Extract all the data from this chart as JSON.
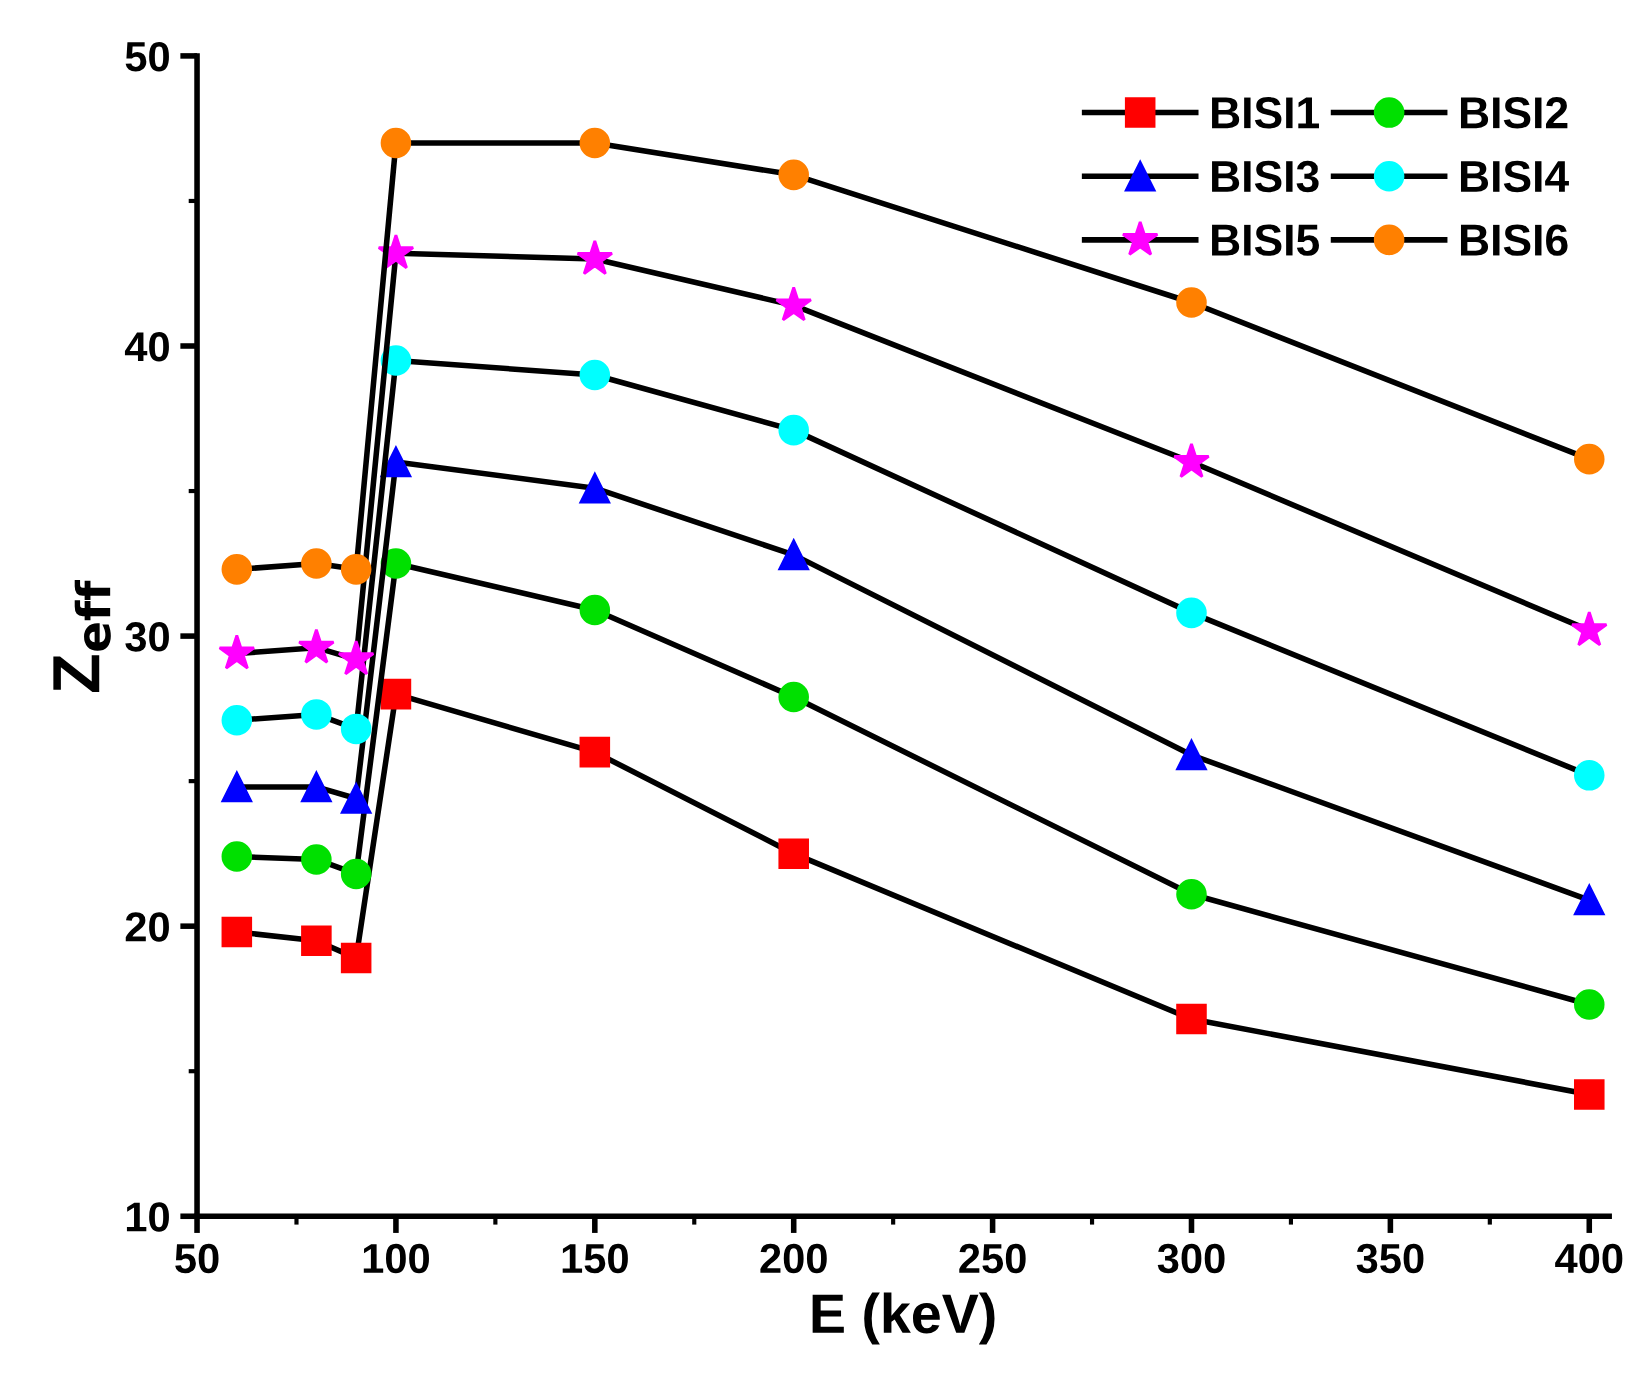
{
  "chart_data": {
    "type": "line",
    "xlabel": "E (keV)",
    "ylabel": "Z$_{eff}$",
    "x": [
      60,
      80,
      90,
      100,
      150,
      200,
      300,
      400
    ],
    "series": [
      {
        "name": "BISI1",
        "color": "#ff0000",
        "marker": "square",
        "values": [
          19.8,
          19.5,
          18.9,
          28.0,
          26.0,
          22.5,
          16.8,
          14.2
        ]
      },
      {
        "name": "BISI2",
        "color": "#00e000",
        "marker": "circle",
        "values": [
          22.4,
          22.3,
          21.8,
          32.5,
          30.9,
          27.9,
          21.1,
          17.3
        ]
      },
      {
        "name": "BISI3",
        "color": "#0000ff",
        "marker": "triangle",
        "values": [
          24.8,
          24.8,
          24.4,
          36.0,
          35.1,
          32.8,
          25.9,
          20.9
        ]
      },
      {
        "name": "BISI4",
        "color": "#00ffff",
        "marker": "circle",
        "values": [
          27.1,
          27.3,
          26.8,
          39.5,
          39.0,
          37.1,
          30.8,
          25.2
        ]
      },
      {
        "name": "BISI5",
        "color": "#ff00ff",
        "marker": "star",
        "values": [
          29.4,
          29.6,
          29.2,
          43.2,
          43.0,
          41.4,
          36.0,
          30.2
        ]
      },
      {
        "name": "BISI6",
        "color": "#ff8000",
        "marker": "circle",
        "values": [
          32.3,
          32.5,
          32.3,
          47.0,
          47.0,
          45.9,
          41.5,
          36.1
        ]
      }
    ],
    "xlim": [
      50,
      405
    ],
    "xticks": [
      50,
      {
        "value": 75,
        "label": null
      },
      100,
      {
        "value": 125,
        "label": null
      },
      150,
      {
        "value": 175,
        "label": null
      },
      200,
      {
        "value": 225,
        "label": null
      },
      250,
      {
        "value": 275,
        "label": null
      },
      300,
      {
        "value": 325,
        "label": null
      },
      350,
      {
        "value": 375,
        "label": null
      },
      400
    ],
    "ylim": [
      10,
      50
    ],
    "yticks": [
      10,
      {
        "value": 15,
        "label": null
      },
      20,
      {
        "value": 25,
        "label": null
      },
      30,
      {
        "value": 35,
        "label": null
      },
      40,
      {
        "value": 45,
        "label": null
      },
      50
    ],
    "line_style": "solid",
    "grid": false,
    "legend": "top right"
  }
}
